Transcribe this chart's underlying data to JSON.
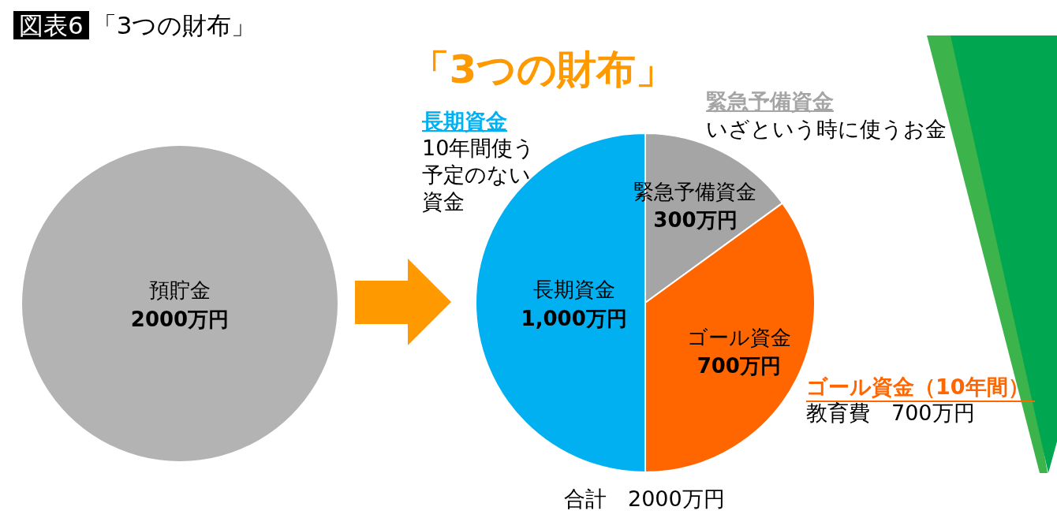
{
  "chart_data": [
    {
      "type": "pie",
      "title": "図表6",
      "subtitle": "「3つの財布」",
      "categories": [
        "預貯金"
      ],
      "values": [
        2000
      ],
      "colors": [
        "#b3b3b3"
      ],
      "value_labels": [
        "2000万円"
      ]
    },
    {
      "type": "pie",
      "title": "「3つの財布」",
      "categories": [
        "緊急予備資金",
        "ゴール資金",
        "長期資金"
      ],
      "values": [
        300,
        700,
        1000
      ],
      "colors": [
        "#a5a5a5",
        "#ff6600",
        "#00b0f0"
      ],
      "value_labels": [
        "300万円",
        "700万円",
        "1,000万円"
      ],
      "annotations": [
        "長期資金",
        "10年間使う予定のない資金",
        "緊急予備資金",
        "いざという時に使うお金",
        "ゴール資金（10年間）",
        "教育費　700万円",
        "合計　2000万円"
      ]
    }
  ]
}
